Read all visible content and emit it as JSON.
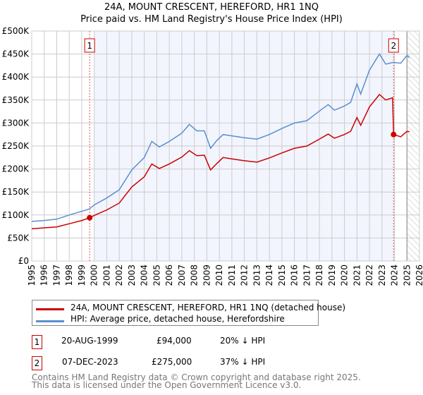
{
  "title": "24A, MOUNT CRESCENT, HEREFORD, HR1 1NQ",
  "subtitle": "Price paid vs. HM Land Registry's House Price Index (HPI)",
  "chart_data": {
    "type": "line",
    "title": "24A, MOUNT CRESCENT, HEREFORD, HR1 1NQ",
    "subtitle": "Price paid vs. HM Land Registry's House Price Index (HPI)",
    "xlim": [
      1995,
      2026
    ],
    "ylim": [
      0,
      500000
    ],
    "x_ticks": [
      "1995",
      "1996",
      "1997",
      "1998",
      "1999",
      "2000",
      "2001",
      "2002",
      "2003",
      "2004",
      "2005",
      "2006",
      "2007",
      "2008",
      "2009",
      "2010",
      "2011",
      "2012",
      "2013",
      "2014",
      "2015",
      "2016",
      "2017",
      "2018",
      "2019",
      "2020",
      "2021",
      "2022",
      "2023",
      "2024",
      "2025",
      "2026"
    ],
    "y_ticks": [
      {
        "v": 0,
        "l": "£0"
      },
      {
        "v": 50000,
        "l": "£50K"
      },
      {
        "v": 100000,
        "l": "£100K"
      },
      {
        "v": 150000,
        "l": "£150K"
      },
      {
        "v": 200000,
        "l": "£200K"
      },
      {
        "v": 250000,
        "l": "£250K"
      },
      {
        "v": 300000,
        "l": "£300K"
      },
      {
        "v": 350000,
        "l": "£350K"
      },
      {
        "v": 400000,
        "l": "£400K"
      },
      {
        "v": 450000,
        "l": "£450K"
      },
      {
        "v": 500000,
        "l": "£500K"
      }
    ],
    "grid": true,
    "shaded_range": [
      2000,
      2023.93
    ],
    "hatched_from": 2025,
    "series": [
      {
        "name": "24A, MOUNT CRESCENT, HEREFORD, HR1 1NQ (detached house)",
        "color": "#cc0000",
        "x": [
          1995,
          1996,
          1997,
          1998,
          1999,
          1999.63,
          2000,
          2001,
          2002,
          2003,
          2004,
          2004.6,
          2005.2,
          2006,
          2007,
          2007.6,
          2008.2,
          2008.8,
          2009.3,
          2009.8,
          2010.3,
          2011,
          2012,
          2013,
          2014,
          2015,
          2016,
          2017,
          2018,
          2018.7,
          2019.2,
          2020,
          2020.5,
          2021,
          2021.3,
          2022,
          2022.8,
          2023.3,
          2023.85,
          2023.93,
          2024.5,
          2025,
          2025.2
        ],
        "y": [
          70000,
          72000,
          74000,
          81000,
          88000,
          94000,
          99000,
          111000,
          126000,
          161000,
          183000,
          211000,
          201000,
          211000,
          226000,
          240000,
          229000,
          230000,
          198000,
          212000,
          225000,
          222000,
          218000,
          215000,
          224000,
          235000,
          245000,
          250000,
          265000,
          276000,
          267000,
          275000,
          282000,
          312000,
          295000,
          335000,
          362000,
          350000,
          355000,
          275000,
          270000,
          282000,
          281000
        ]
      },
      {
        "name": "HPI: Average price, detached house, Herefordshire",
        "color": "#5b8fd0",
        "x": [
          1995,
          1996,
          1997,
          1998,
          1999,
          1999.6,
          2000,
          2001,
          2002,
          2003,
          2004,
          2004.6,
          2005.2,
          2006,
          2007,
          2007.6,
          2008.2,
          2008.8,
          2009.3,
          2009.8,
          2010.3,
          2011,
          2012,
          2013,
          2014,
          2015,
          2016,
          2017,
          2018,
          2018.7,
          2019.2,
          2020,
          2020.5,
          2021,
          2021.3,
          2022,
          2022.8,
          2023.3,
          2023.9,
          2024.5,
          2025,
          2025.2
        ],
        "y": [
          86000,
          88000,
          91000,
          100000,
          108000,
          113000,
          122000,
          137000,
          155000,
          198000,
          225000,
          260000,
          248000,
          260000,
          278000,
          297000,
          283000,
          283000,
          245000,
          262000,
          275000,
          272000,
          268000,
          265000,
          275000,
          288000,
          300000,
          305000,
          326000,
          340000,
          328000,
          337000,
          345000,
          385000,
          363000,
          415000,
          450000,
          428000,
          432000,
          430000,
          447000,
          442000
        ]
      }
    ],
    "sales": [
      {
        "label": "1",
        "x": 1999.63,
        "y": 94000
      },
      {
        "label": "2",
        "x": 2023.93,
        "y": 275000
      }
    ]
  },
  "legend": {
    "items": [
      "24A, MOUNT CRESCENT, HEREFORD, HR1 1NQ (detached house)",
      "HPI: Average price, detached house, Herefordshire"
    ]
  },
  "transactions": [
    {
      "num": "1",
      "date": "20-AUG-1999",
      "price": "£94,000",
      "hpi": "20% ↓ HPI"
    },
    {
      "num": "2",
      "date": "07-DEC-2023",
      "price": "£275,000",
      "hpi": "37% ↓ HPI"
    }
  ],
  "footer": [
    "Contains HM Land Registry data © Crown copyright and database right 2025.",
    "This data is licensed under the Open Government Licence v3.0."
  ]
}
